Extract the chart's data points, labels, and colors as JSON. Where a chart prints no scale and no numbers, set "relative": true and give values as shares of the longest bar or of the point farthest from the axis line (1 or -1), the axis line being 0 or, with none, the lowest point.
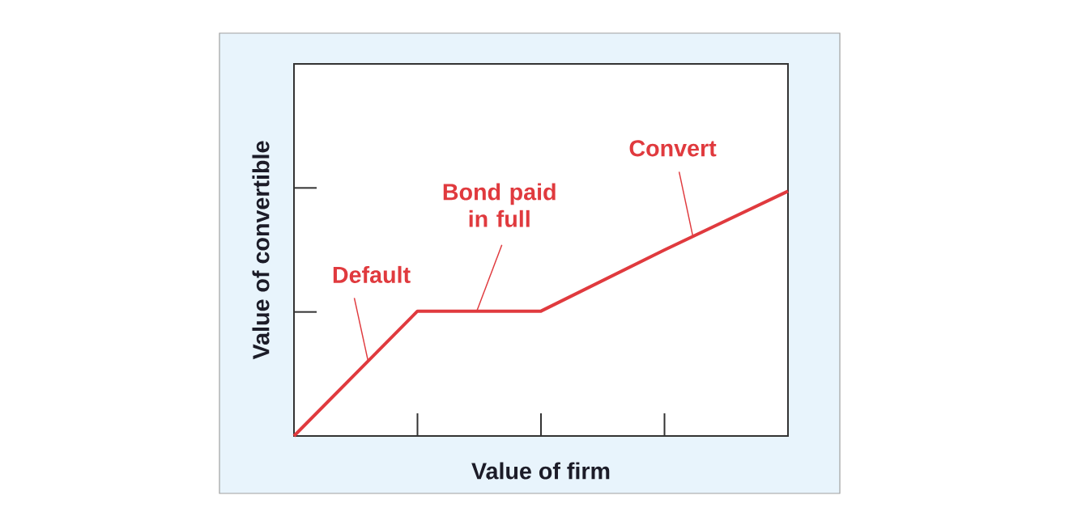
{
  "chart_data": {
    "type": "line",
    "xlabel": "Value of firm",
    "ylabel": "Value of convertible",
    "categories": [
      null,
      null,
      null,
      null,
      null
    ],
    "values": [
      0,
      0.51,
      0.51,
      0.76,
      1
    ],
    "color": "#e03a3e",
    "relative": true,
    "annotations": [
      "Default",
      "Bond paid in full",
      "Convert"
    ]
  }
}
